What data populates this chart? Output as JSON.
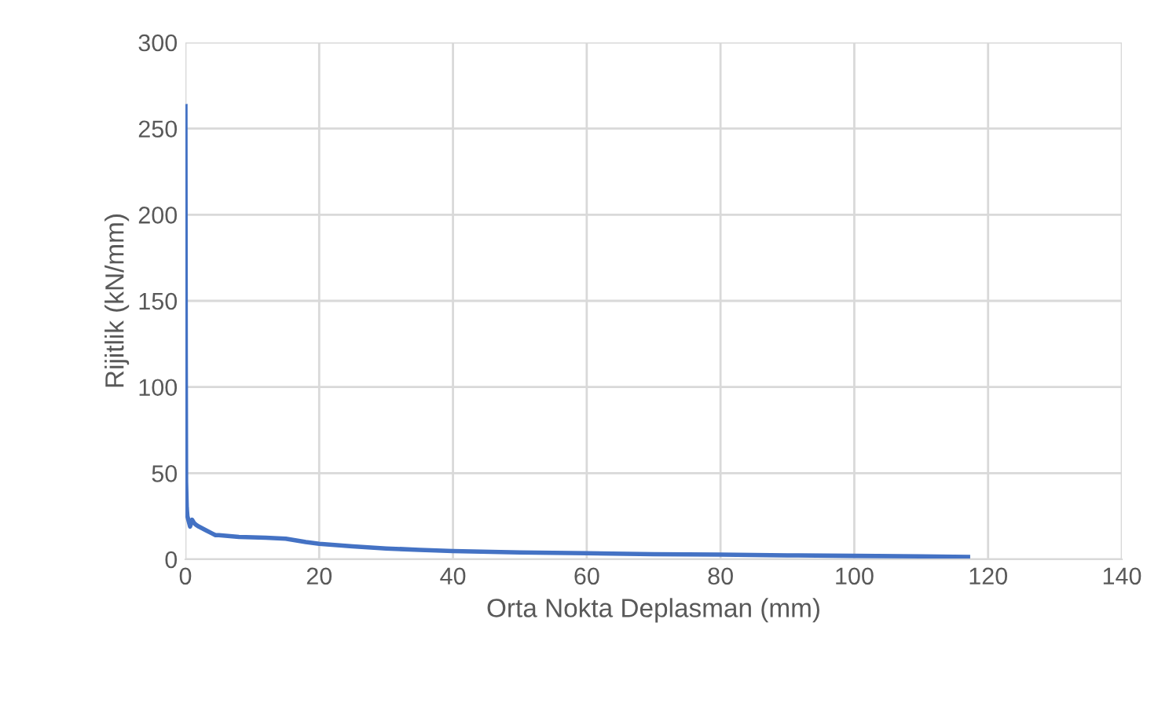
{
  "chart_data": {
    "type": "line",
    "xlabel": "Orta Nokta Deplasman (mm)",
    "ylabel": "Rijitlik (kN/mm)",
    "series": [
      {
        "color": "#4472c4",
        "x": [
          0,
          0.05,
          0.1,
          0.2,
          0.3,
          0.5,
          0.7,
          1.0,
          1.3,
          1.6,
          2.0,
          2.5,
          3.0,
          4.0,
          4.5,
          5,
          8,
          12,
          15,
          18,
          20,
          25,
          30,
          35,
          40,
          50,
          60,
          70,
          80,
          90,
          100,
          110,
          117
        ],
        "values": [
          263,
          120,
          45,
          30,
          25,
          22,
          19,
          23,
          21,
          20,
          19,
          18,
          17,
          15,
          14,
          14,
          13,
          12.5,
          12,
          10,
          9,
          7.5,
          6.3,
          5.5,
          4.8,
          4,
          3.5,
          3,
          2.7,
          2.3,
          2,
          1.7,
          1.4
        ]
      }
    ],
    "xlim": [
      0,
      140
    ],
    "xticks": [
      0,
      20,
      40,
      60,
      80,
      100,
      120,
      140
    ],
    "ylim": [
      0,
      300
    ],
    "yticks": [
      0,
      50,
      100,
      150,
      200,
      250,
      300
    ],
    "grid": true,
    "legend": false,
    "marker": "none",
    "line_style": "solid"
  }
}
